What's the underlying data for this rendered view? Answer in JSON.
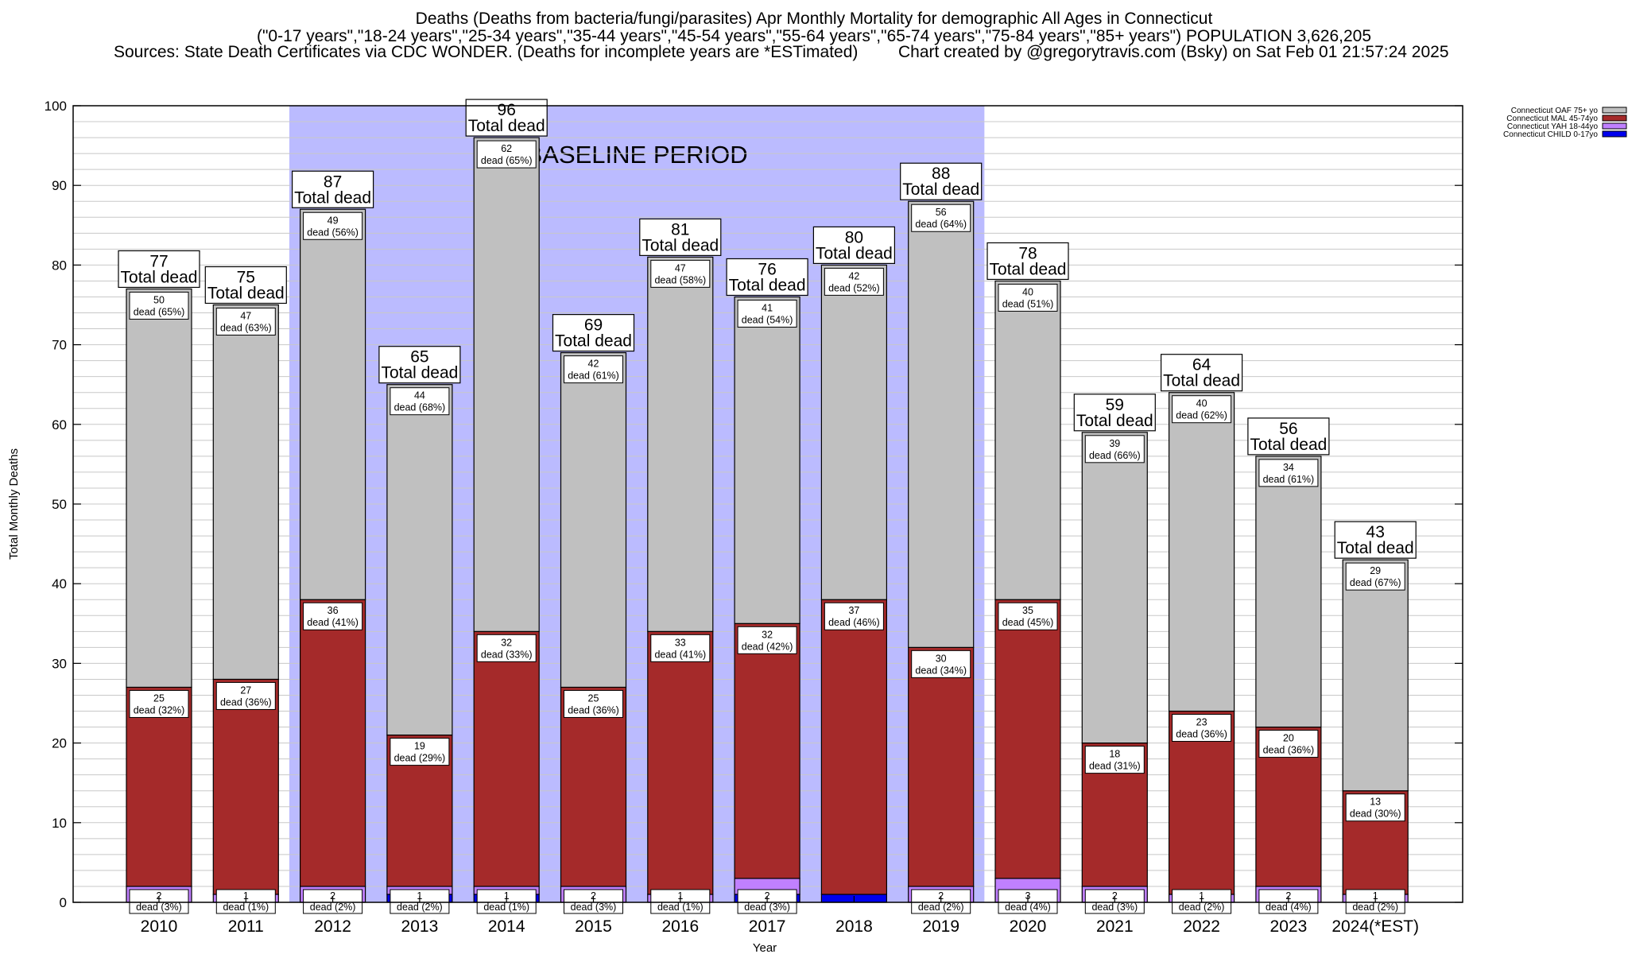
{
  "title": "Deaths (Deaths from bacteria/fungi/parasites) Apr Monthly Mortality for demographic All Ages in Connecticut",
  "subtitle": "(\"0-17 years\",\"18-24 years\",\"25-34 years\",\"35-44 years\",\"45-54 years\",\"55-64 years\",\"65-74 years\",\"75-84 years\",\"85+ years\") POPULATION 3,626,205",
  "sources": "Sources: State Death Certificates via CDC WONDER. (Deaths for incomplete years are *ESTimated)",
  "credit": "Chart created by @gregorytravis.com (Bsky) on Sat Feb 01 21:57:24 2025",
  "baseline_label": "BASELINE PERIOD",
  "total_label": "Total dead",
  "dead_word": "dead",
  "colors": {
    "oaf": "#c0c0c0",
    "mal": "#a52a2a",
    "yah": "#c080ff",
    "child": "#0000ee",
    "baseline": "#bbbbff"
  },
  "chart_data": {
    "type": "bar",
    "stacked": true,
    "xlabel": "Year",
    "ylabel": "Total Monthly Deaths",
    "ylim": [
      0,
      100
    ],
    "yticks": [
      0,
      10,
      20,
      30,
      40,
      50,
      60,
      70,
      80,
      90,
      100
    ],
    "grid": true,
    "legend_position": "top-right",
    "baseline_period": [
      "2012",
      "2019"
    ],
    "categories": [
      "2010",
      "2011",
      "2012",
      "2013",
      "2014",
      "2015",
      "2016",
      "2017",
      "2018",
      "2019",
      "2020",
      "2021",
      "2022",
      "2023",
      "2024(*EST)"
    ],
    "totals": [
      77,
      75,
      87,
      65,
      96,
      69,
      81,
      76,
      80,
      88,
      78,
      59,
      64,
      56,
      43
    ],
    "series": [
      {
        "name": "Connecticut CHILD 0-17yo",
        "key": "child",
        "values": [
          0,
          0,
          0,
          1,
          1,
          0,
          0,
          1,
          1,
          0,
          0,
          0,
          0,
          0,
          0
        ],
        "labels": [
          "",
          "",
          "",
          "",
          "",
          "",
          "",
          "",
          "",
          "",
          "",
          "",
          "",
          "",
          ""
        ]
      },
      {
        "name": "Connecticut YAH 18-44yo",
        "key": "yah",
        "values": [
          2,
          1,
          2,
          1,
          1,
          2,
          1,
          2,
          0,
          2,
          3,
          2,
          1,
          2,
          1
        ],
        "labels": [
          "(3%)",
          "(1%)",
          "(2%)",
          "(2%)",
          "(1%)",
          "(3%)",
          "(1%)",
          "(3%)",
          "",
          "(2%)",
          "(4%)",
          "(3%)",
          "(2%)",
          "(4%)",
          "(2%)"
        ]
      },
      {
        "name": "Connecticut MAL 45-74yo",
        "key": "mal",
        "values": [
          25,
          27,
          36,
          19,
          32,
          25,
          33,
          32,
          37,
          30,
          35,
          18,
          23,
          20,
          13
        ],
        "labels": [
          "(32%)",
          "(36%)",
          "(41%)",
          "(29%)",
          "(33%)",
          "(36%)",
          "(41%)",
          "(42%)",
          "(46%)",
          "(34%)",
          "(45%)",
          "(31%)",
          "(36%)",
          "(36%)",
          "(30%)"
        ]
      },
      {
        "name": "Connecticut OAF 75+ yo",
        "key": "oaf",
        "values": [
          50,
          47,
          49,
          44,
          62,
          42,
          47,
          41,
          42,
          56,
          40,
          39,
          40,
          34,
          29
        ],
        "labels": [
          "(65%)",
          "(63%)",
          "(56%)",
          "(68%)",
          "(65%)",
          "(61%)",
          "(58%)",
          "(54%)",
          "(52%)",
          "(64%)",
          "(51%)",
          "(66%)",
          "(62%)",
          "(61%)",
          "(67%)"
        ]
      }
    ]
  }
}
